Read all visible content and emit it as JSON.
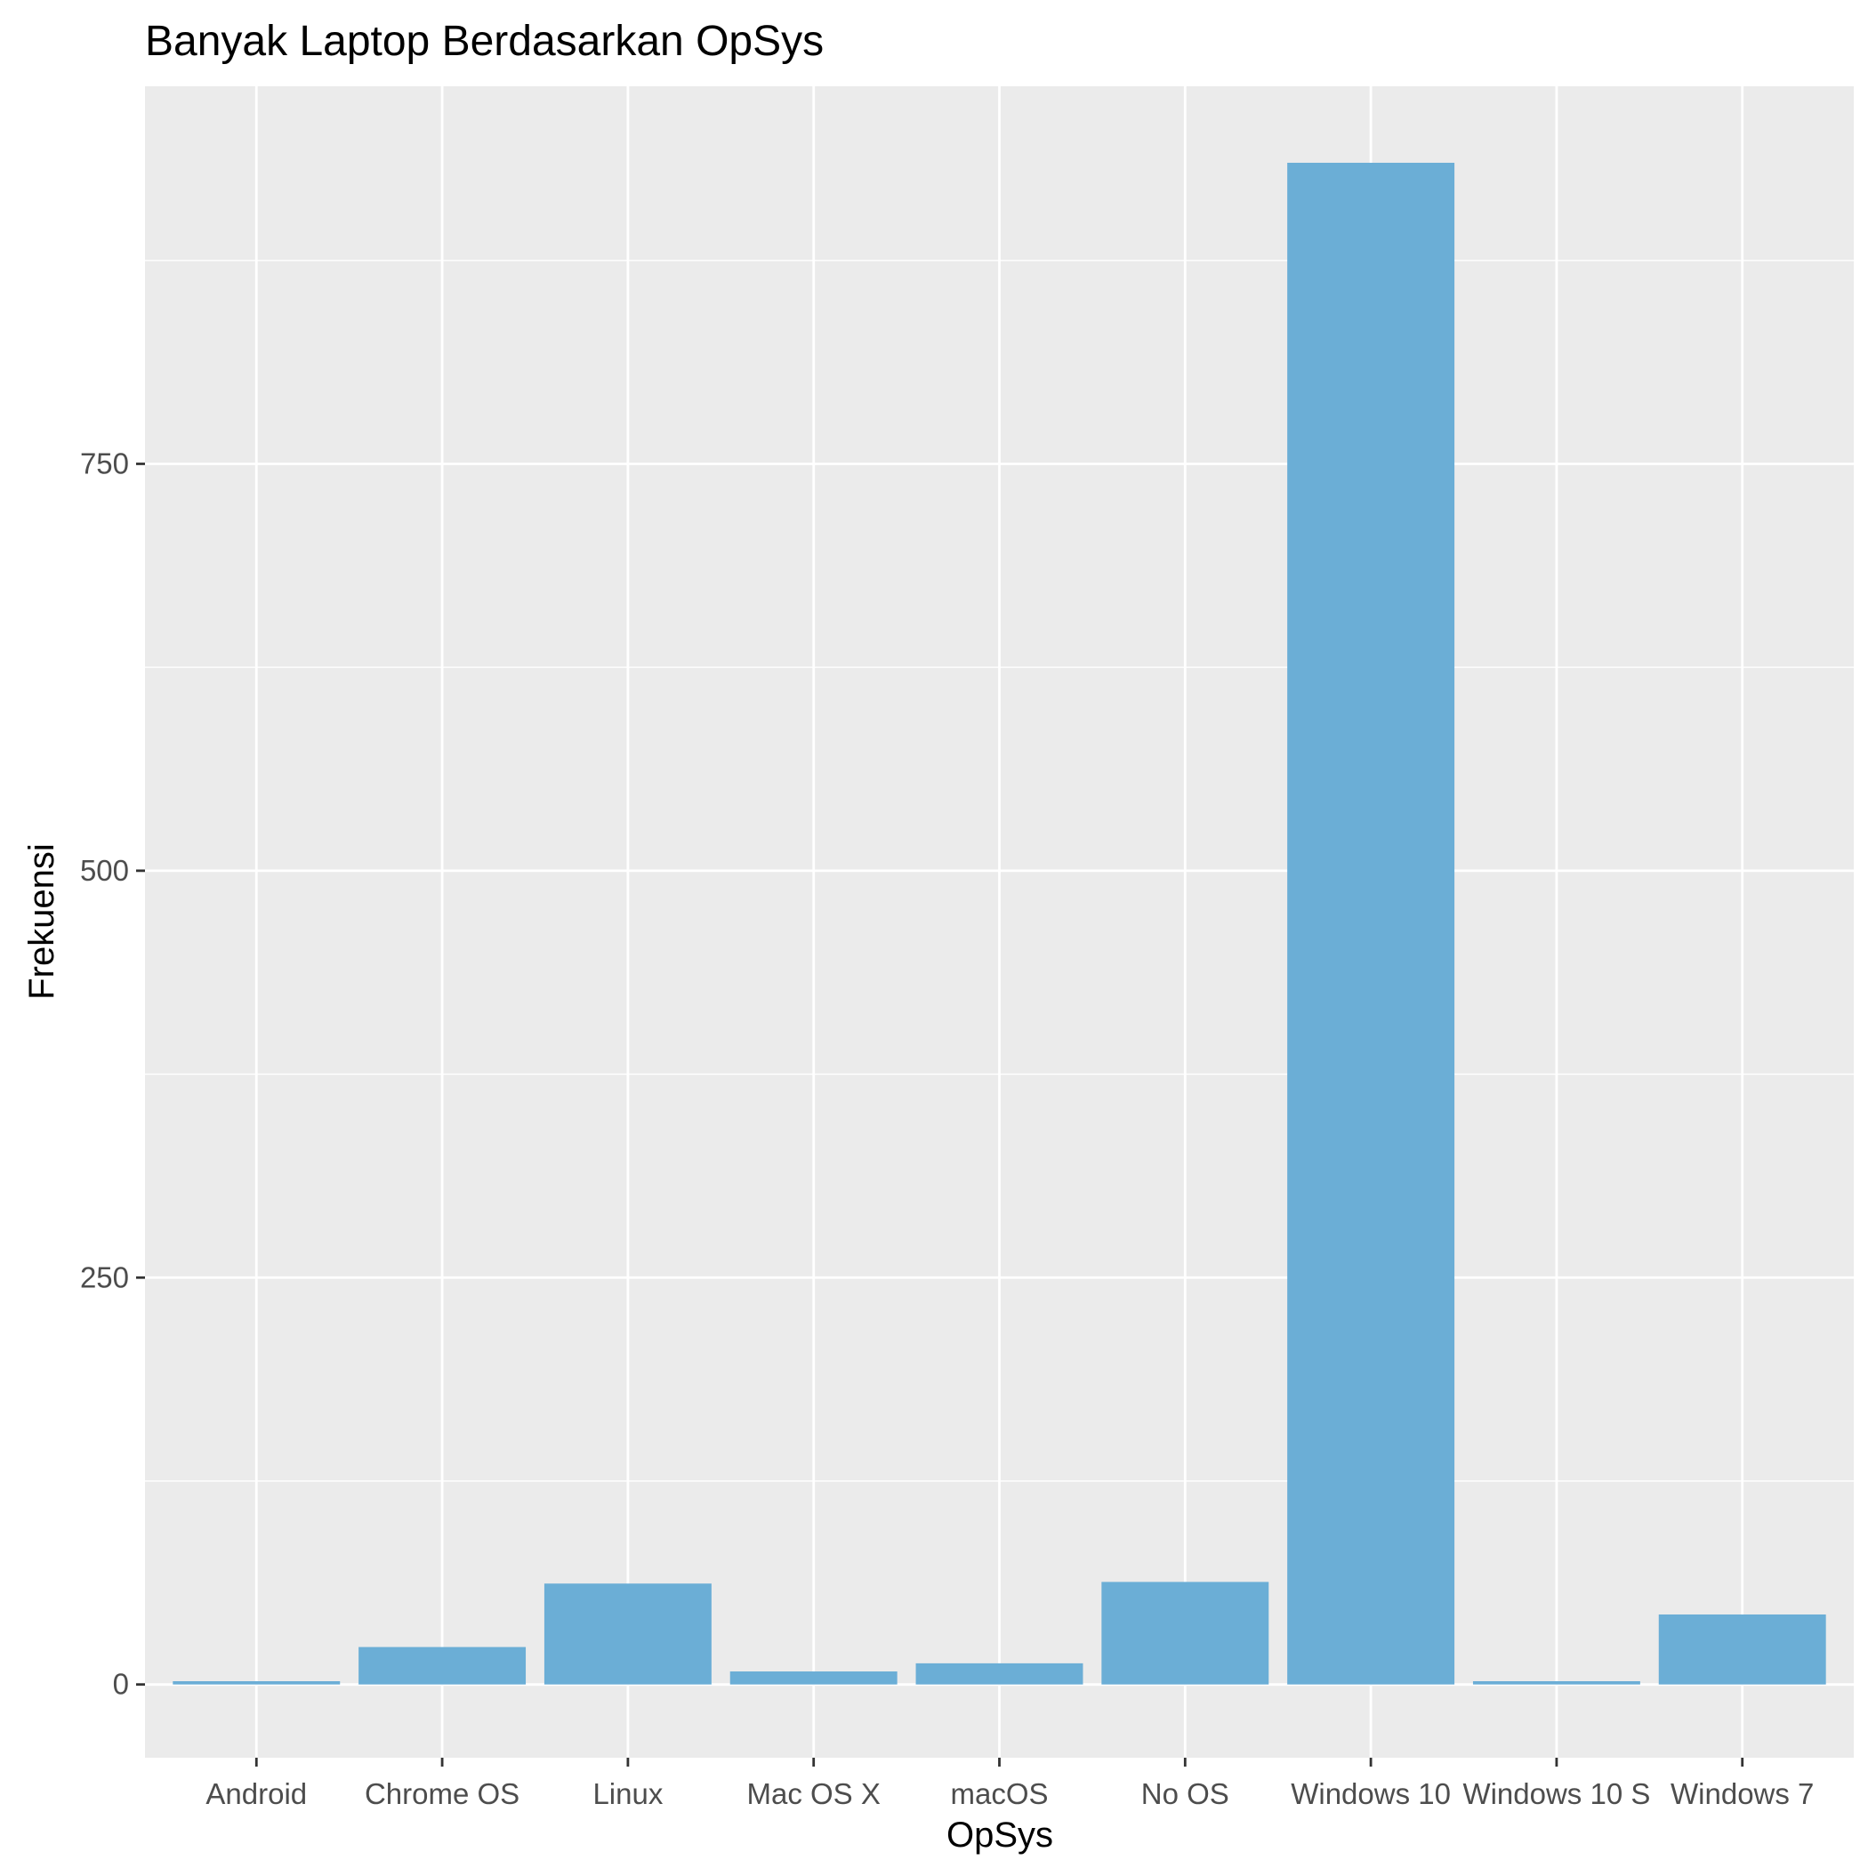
{
  "chart_data": {
    "type": "bar",
    "title": "Banyak Laptop Berdasarkan OpSys",
    "xlabel": "OpSys",
    "ylabel": "Frekuensi",
    "categories": [
      "Android",
      "Chrome OS",
      "Linux",
      "Mac OS X",
      "macOS",
      "No OS",
      "Windows 10",
      "Windows 10 S",
      "Windows 7"
    ],
    "values": [
      2,
      23,
      62,
      8,
      13,
      63,
      935,
      2,
      43
    ],
    "ylim": [
      -45,
      982
    ],
    "yticks": [
      0,
      250,
      500,
      750
    ],
    "ytick_labels": [
      "0",
      "250",
      "500",
      "750"
    ],
    "y_minor_ticks": [
      125,
      375,
      625,
      875
    ],
    "grid": true,
    "legend": "none",
    "colors": {
      "bar": "#6baed6",
      "panel": "#ebebeb",
      "grid": "#ffffff",
      "tick": "#333333"
    }
  }
}
